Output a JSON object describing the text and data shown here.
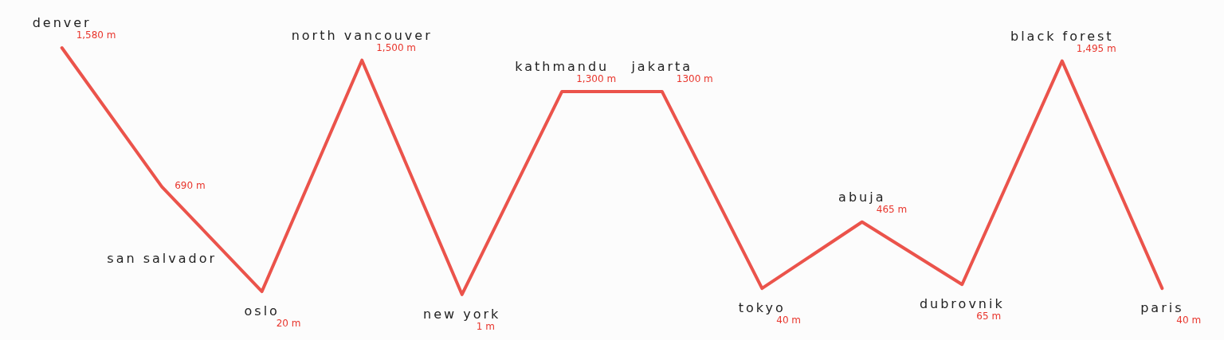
{
  "chart_data": {
    "type": "line",
    "color": "#e8352c",
    "categories": [
      "denver",
      "san salvador",
      "oslo",
      "north vancouver",
      "new york",
      "kathmandu",
      "jakarta",
      "tokyo",
      "abuja",
      "dubrovnik",
      "black forest",
      "paris"
    ],
    "values": [
      1580,
      690,
      20,
      1500,
      1,
      1300,
      1300,
      40,
      465,
      65,
      1495,
      40
    ],
    "value_labels": [
      "1,580 m",
      "690 m",
      "20 m",
      "1,500 m",
      "1 m",
      "1,300 m",
      "1300 m",
      "40 m",
      "465 m",
      "65 m",
      "1,495 m",
      "40 m"
    ]
  }
}
